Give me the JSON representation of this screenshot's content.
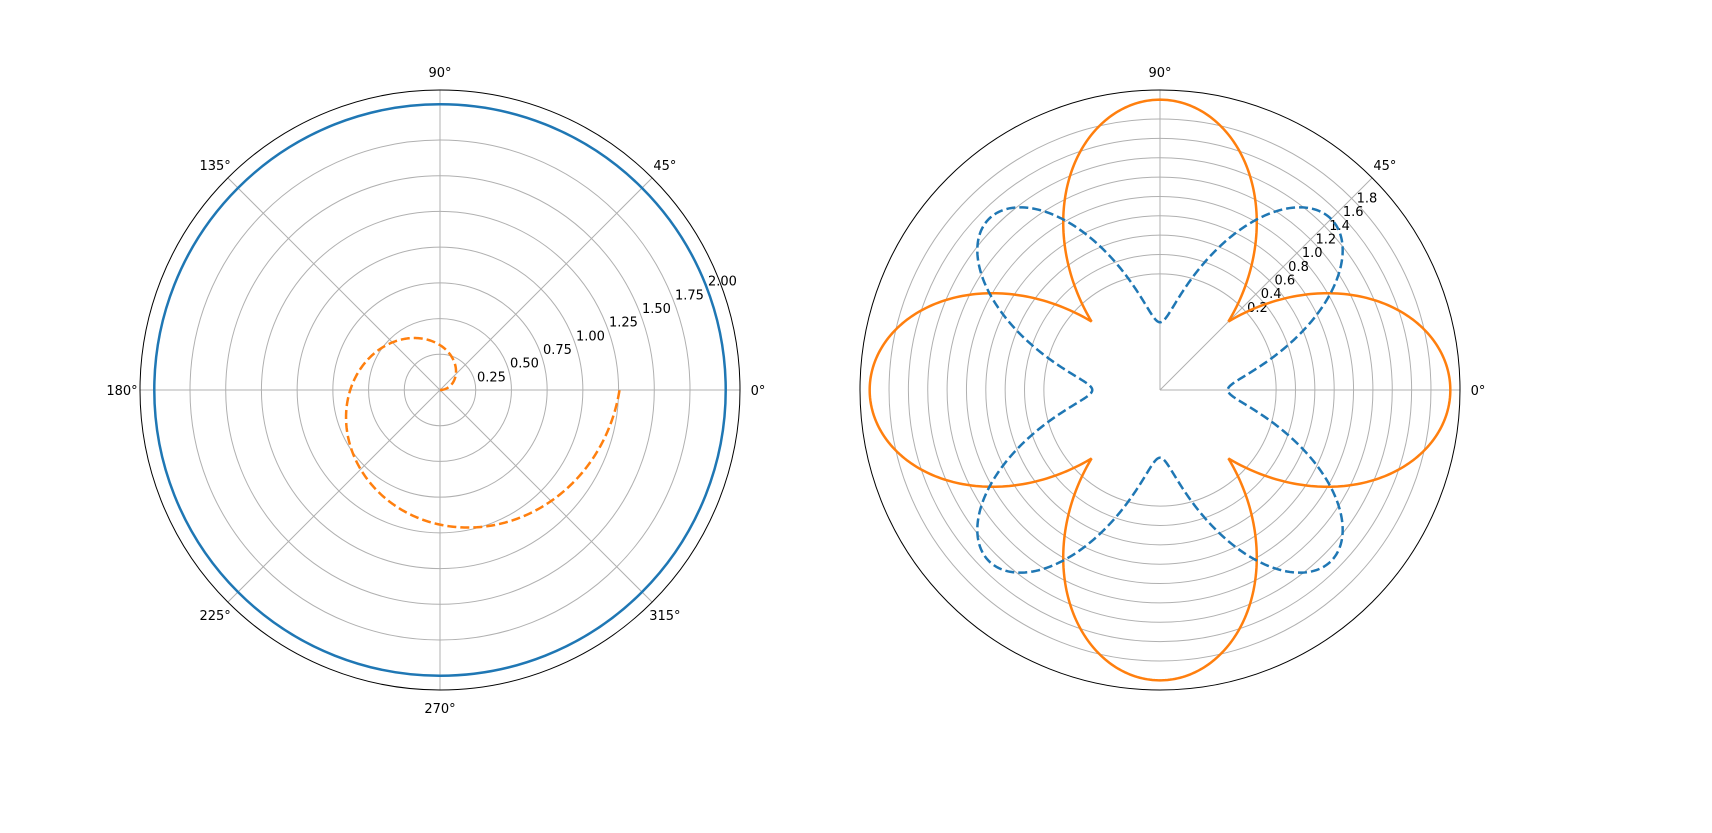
{
  "chart_data": [
    {
      "type": "line",
      "projection": "polar",
      "title": "",
      "angle_tick_labels": [
        "0°",
        "45°",
        "90°",
        "135°",
        "180°",
        "225°",
        "270°",
        "315°"
      ],
      "radial_tick_labels": [
        "0.25",
        "0.50",
        "0.75",
        "1.00",
        "1.25",
        "1.50",
        "1.75",
        "2.00"
      ],
      "rlim": [
        0,
        2.1
      ],
      "grid": true,
      "series": [
        {
          "color": "#1f77b4",
          "linestyle": "solid",
          "curve": "circle",
          "r_constant": 2.0,
          "theta_deg_range": [
            0,
            360
          ]
        },
        {
          "color": "#ff7f0e",
          "linestyle": "dashed",
          "curve": "archimedean_spiral",
          "r_per_radian": 0.2,
          "theta_deg_range": [
            0,
            360
          ]
        }
      ]
    },
    {
      "type": "line",
      "projection": "polar",
      "title": "",
      "angle_tick_labels": [
        "0°",
        "45°",
        "90°"
      ],
      "radial_tick_labels": [
        "0.2",
        "0.4",
        "0.6",
        "0.8",
        "1.0",
        "1.2",
        "1.4",
        "1.6",
        "1.8"
      ],
      "radial_tick_angle_deg": 45,
      "rlim": [
        -1.0,
        2.1
      ],
      "grid": true,
      "series": [
        {
          "color": "#ff7f0e",
          "linestyle": "solid",
          "curve": "four_leaf_rose",
          "formula": "r = 2*|cos(2θ)|",
          "theta_deg_range": [
            0,
            360
          ]
        },
        {
          "color": "#1f77b4",
          "linestyle": "dashed",
          "curve": "four_lobe_wave",
          "formula": "r = 1.5*cos(2θ)^2 - sin(2θ)^2*0.3",
          "theta_deg_range": [
            0,
            360
          ]
        }
      ]
    }
  ]
}
